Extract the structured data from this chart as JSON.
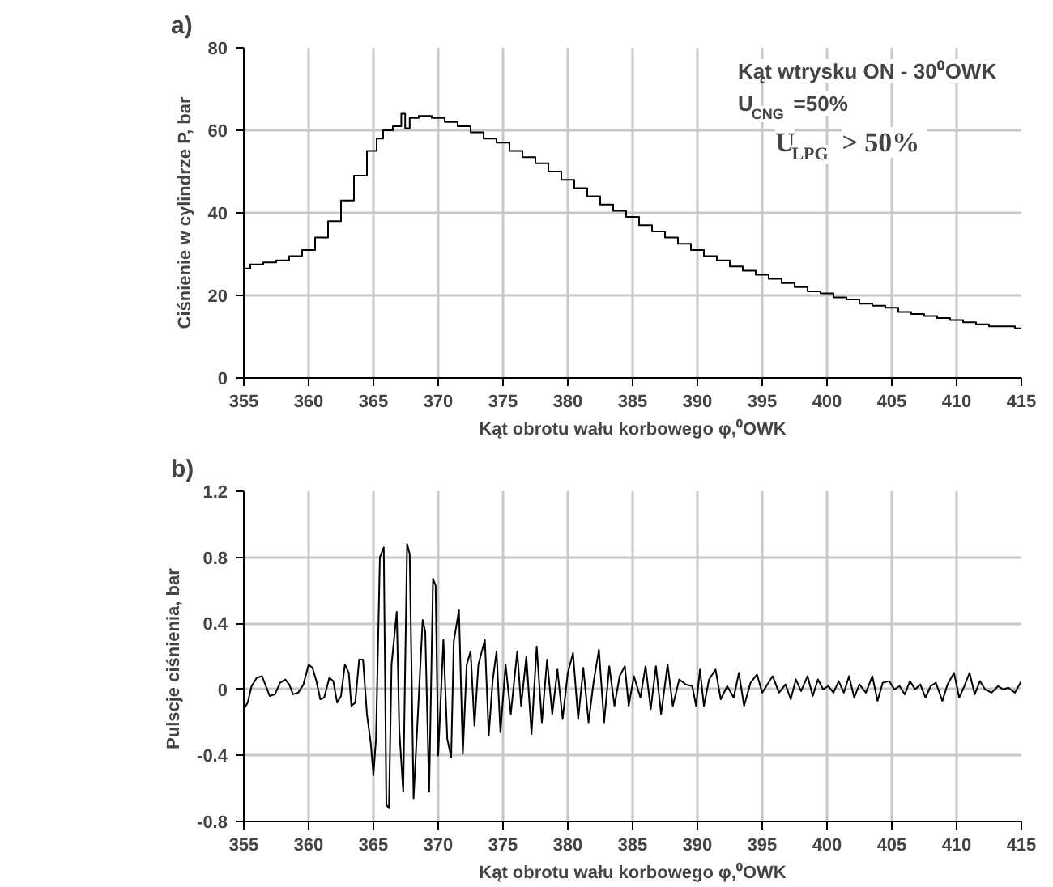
{
  "chart_data": [
    {
      "type": "step",
      "title": "a)",
      "xlabel": "Kąt obrotu wału korbowego φ,⁰OWK",
      "ylabel": "Ciśnienie w cylindrze P, bar",
      "annotations": [
        "Kąt wtrysku ON  -  30⁰OWK",
        "U$_{CNG}$ =50%",
        "U$_{LPG}$ > 50%"
      ],
      "xlim": [
        355,
        415
      ],
      "xticks": [
        355,
        360,
        365,
        370,
        375,
        380,
        385,
        390,
        395,
        400,
        405,
        410,
        415
      ],
      "ylim": [
        0,
        80
      ],
      "yticks": [
        0,
        20,
        40,
        60,
        80
      ],
      "grid": true,
      "series": [
        {
          "color": "#000000",
          "x": [
            355,
            356,
            357,
            358,
            359,
            360,
            361,
            362,
            363,
            364,
            365,
            365.5,
            366,
            367,
            367.3,
            367.6,
            368,
            369,
            370,
            371,
            372,
            373,
            374,
            375,
            376,
            377,
            378,
            379,
            380,
            381,
            382,
            383,
            384,
            385,
            386,
            387,
            388,
            389,
            390,
            391,
            392,
            393,
            394,
            395,
            396,
            397,
            398,
            399,
            400,
            401,
            402,
            403,
            404,
            405,
            406,
            407,
            408,
            409,
            410,
            411,
            412,
            413,
            414,
            415
          ],
          "values": [
            26.5,
            27.5,
            28,
            28.5,
            29.5,
            31,
            34,
            38,
            43,
            49,
            55,
            58,
            60,
            61,
            64,
            60.5,
            63,
            63.5,
            63,
            62,
            61,
            59.5,
            58,
            57,
            55,
            53.5,
            52,
            50,
            48,
            46,
            44,
            42,
            40.5,
            39,
            37,
            35.5,
            34,
            32.5,
            31,
            29.5,
            28.5,
            27,
            26,
            25,
            24,
            23,
            22,
            21,
            20.5,
            19.5,
            19,
            18,
            17.5,
            17,
            16,
            15.5,
            15,
            14.5,
            14,
            13.5,
            13,
            12.5,
            12.5,
            12
          ]
        }
      ]
    },
    {
      "type": "line",
      "title": "b)",
      "xlabel": "Kąt obrotu wału korbowego φ,⁰OWK",
      "ylabel": "Pulscje ciśnienia,  bar",
      "xlim": [
        355,
        415
      ],
      "xticks": [
        355,
        360,
        365,
        370,
        375,
        380,
        385,
        390,
        395,
        400,
        405,
        410,
        415
      ],
      "ylim": [
        -0.8,
        1.2
      ],
      "yticks": [
        -0.8,
        -0.4,
        0,
        0.4,
        0.8,
        1.2
      ],
      "grid": true,
      "series": [
        {
          "color": "#000000",
          "x": [
            355,
            355.3,
            355.6,
            356,
            356.4,
            356.7,
            357,
            357.4,
            357.8,
            358.2,
            358.5,
            358.8,
            359.2,
            359.6,
            360,
            360.3,
            360.6,
            360.9,
            361.2,
            361.6,
            361.9,
            362.2,
            362.5,
            362.8,
            363.1,
            363.3,
            363.6,
            363.9,
            364.2,
            364.5,
            364.8,
            365,
            365.2,
            365.5,
            365.8,
            366,
            366.2,
            366.4,
            366.8,
            367,
            367.3,
            367.6,
            367.8,
            368.1,
            368.4,
            368.8,
            369,
            369.3,
            369.6,
            369.8,
            370,
            370.4,
            370.7,
            371,
            371.2,
            371.6,
            371.9,
            372.2,
            372.5,
            372.8,
            373.1,
            373.6,
            373.9,
            374.2,
            374.5,
            374.8,
            375.2,
            375.6,
            376.1,
            376.4,
            376.8,
            377.2,
            377.6,
            378,
            378.4,
            378.8,
            379.2,
            379.6,
            380,
            380.4,
            380.8,
            381.2,
            381.6,
            382,
            382.4,
            382.8,
            383.2,
            383.6,
            384,
            384.4,
            384.7,
            385.1,
            385.6,
            386,
            386.4,
            386.8,
            387.2,
            387.7,
            388.1,
            388.6,
            389.1,
            389.6,
            389.9,
            390.2,
            390.5,
            390.9,
            391.4,
            391.8,
            392.3,
            392.8,
            393.2,
            393.6,
            394.1,
            394.6,
            395,
            395.4,
            395.8,
            396.3,
            396.8,
            397.2,
            397.6,
            398,
            398.5,
            398.9,
            399.3,
            399.7,
            400.1,
            400.5,
            400.9,
            401.3,
            401.7,
            402.1,
            402.5,
            403,
            403.5,
            403.9,
            404.3,
            404.8,
            405.2,
            405.6,
            406,
            406.4,
            406.8,
            407.2,
            407.6,
            408,
            408.4,
            408.9,
            409.3,
            409.8,
            410.2,
            410.6,
            411,
            411.4,
            411.8,
            412.2,
            412.7,
            413.2,
            413.6,
            414,
            414.5,
            415
          ],
          "values": [
            -0.12,
            -0.08,
            0.02,
            0.07,
            0.08,
            0.02,
            -0.04,
            -0.03,
            0.04,
            0.06,
            0.03,
            -0.03,
            -0.02,
            0.03,
            0.15,
            0.13,
            0.05,
            -0.06,
            -0.05,
            0.07,
            0.05,
            -0.08,
            -0.04,
            0.15,
            0.1,
            -0.1,
            -0.08,
            0.18,
            0.18,
            -0.15,
            -0.33,
            -0.52,
            -0.3,
            0.8,
            0.86,
            -0.7,
            -0.72,
            0.15,
            0.47,
            -0.25,
            -0.62,
            0.88,
            0.82,
            -0.66,
            -0.2,
            0.42,
            0.35,
            -0.62,
            0.67,
            0.63,
            -0.4,
            0.3,
            -0.3,
            -0.41,
            0.29,
            0.48,
            -0.39,
            0.15,
            0.23,
            -0.22,
            0.15,
            0.3,
            -0.28,
            0.05,
            0.23,
            -0.26,
            0.15,
            -0.15,
            0.23,
            -0.1,
            0.2,
            -0.27,
            0.26,
            -0.2,
            0.18,
            -0.15,
            0.12,
            -0.18,
            0.1,
            0.22,
            -0.18,
            0.13,
            -0.2,
            0.05,
            0.24,
            -0.2,
            0.14,
            -0.1,
            0.08,
            0.14,
            -0.1,
            0.08,
            -0.05,
            0.14,
            -0.12,
            0.14,
            -0.15,
            0.15,
            -0.1,
            0.06,
            0.03,
            0.02,
            -0.1,
            0.12,
            -0.1,
            0.06,
            0.12,
            -0.06,
            0.02,
            -0.05,
            0.1,
            -0.1,
            0.04,
            0.09,
            -0.02,
            0.03,
            0.08,
            -0.02,
            0.03,
            -0.06,
            0.06,
            -0.01,
            0.08,
            -0.04,
            0.06,
            0.0,
            0.02,
            -0.02,
            0.05,
            -0.02,
            0.08,
            -0.05,
            0.03,
            -0.02,
            0.08,
            -0.07,
            0.04,
            0.05,
            0.0,
            0.02,
            -0.03,
            0.05,
            0.0,
            0.03,
            -0.05,
            0.02,
            0.04,
            -0.07,
            0.03,
            0.1,
            -0.05,
            0.02,
            0.1,
            -0.03,
            0.05,
            0.0,
            -0.02,
            0.02,
            0.0,
            0.01,
            -0.02,
            0.05
          ]
        }
      ]
    }
  ]
}
